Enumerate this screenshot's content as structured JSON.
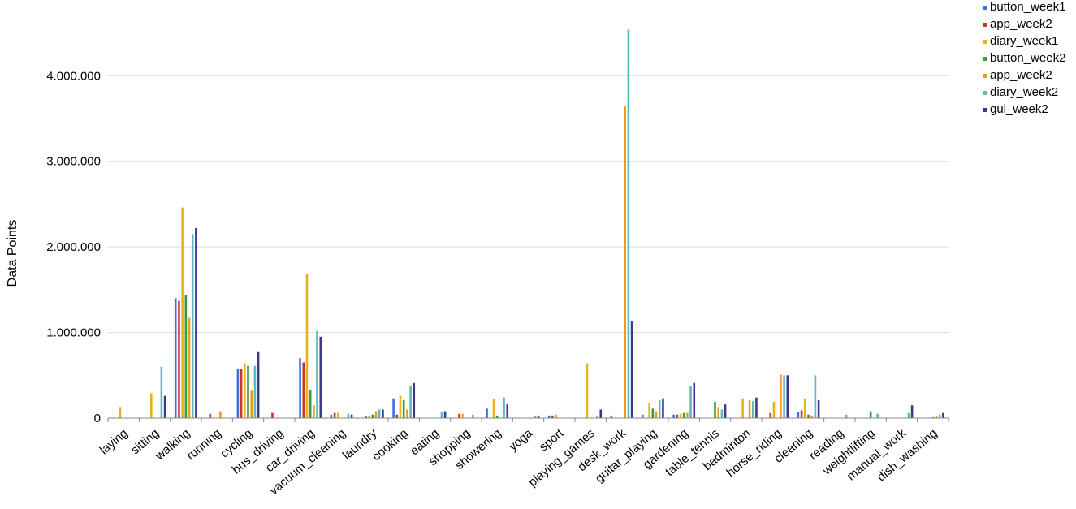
{
  "chart_data": {
    "type": "bar",
    "title": "",
    "xlabel": "",
    "ylabel": "Data Points",
    "ylim": [
      0,
      4600000
    ],
    "yticks": [
      {
        "value": 0,
        "label": "0"
      },
      {
        "value": 1000000,
        "label": "1.000.000"
      },
      {
        "value": 2000000,
        "label": "2.000.000"
      },
      {
        "value": 3000000,
        "label": "3.000.000"
      },
      {
        "value": 4000000,
        "label": "4.000.000"
      }
    ],
    "grid": true,
    "legend_position": "top-right",
    "categories": [
      "laying",
      "sitting",
      "walking",
      "running",
      "cycling",
      "bus_driving",
      "car_driving",
      "vacuum_cleaning",
      "laundry",
      "cooking",
      "eating",
      "shopping",
      "showering",
      "yoga",
      "sport",
      "playing_games",
      "desk_work",
      "guitar_playing",
      "gardening",
      "table_tennis",
      "badminton",
      "horse_riding",
      "cleaning",
      "reading",
      "weightlifting",
      "manual_work",
      "dish_washing"
    ],
    "series": [
      {
        "name": "button_week1",
        "color": "#3d6fdb",
        "values": [
          0,
          0,
          1400000,
          0,
          570000,
          0,
          700000,
          40000,
          0,
          230000,
          0,
          0,
          110000,
          0,
          30000,
          0,
          30000,
          40000,
          40000,
          0,
          0,
          0,
          70000,
          0,
          0,
          0,
          0
        ]
      },
      {
        "name": "app_week2",
        "color": "#c0392b",
        "values": [
          0,
          0,
          1370000,
          50000,
          570000,
          60000,
          650000,
          60000,
          20000,
          40000,
          0,
          50000,
          0,
          0,
          30000,
          0,
          0,
          0,
          40000,
          0,
          0,
          60000,
          90000,
          0,
          0,
          0,
          0
        ]
      },
      {
        "name": "diary_week1",
        "color": "#e8b21c",
        "values": [
          130000,
          290000,
          2460000,
          0,
          640000,
          0,
          1680000,
          60000,
          20000,
          260000,
          0,
          50000,
          220000,
          0,
          40000,
          640000,
          0,
          170000,
          50000,
          0,
          230000,
          190000,
          230000,
          0,
          0,
          0,
          0
        ]
      },
      {
        "name": "button_week2",
        "color": "#3a9a3a",
        "values": [
          0,
          0,
          1440000,
          0,
          610000,
          0,
          330000,
          0,
          40000,
          210000,
          0,
          0,
          30000,
          0,
          0,
          0,
          0,
          110000,
          60000,
          190000,
          0,
          0,
          40000,
          0,
          80000,
          0,
          10000
        ]
      },
      {
        "name": "app_week2",
        "color": "#ee9a1a",
        "values": [
          0,
          0,
          1170000,
          80000,
          320000,
          0,
          150000,
          0,
          80000,
          100000,
          0,
          0,
          0,
          0,
          0,
          0,
          3640000,
          80000,
          60000,
          130000,
          210000,
          510000,
          30000,
          0,
          0,
          0,
          20000
        ]
      },
      {
        "name": "diary_week2",
        "color": "#5bbcc0",
        "values": [
          0,
          600000,
          2150000,
          0,
          610000,
          0,
          1020000,
          50000,
          100000,
          380000,
          70000,
          40000,
          240000,
          20000,
          0,
          30000,
          4540000,
          210000,
          370000,
          100000,
          200000,
          500000,
          500000,
          40000,
          50000,
          60000,
          40000
        ]
      },
      {
        "name": "gui_week2",
        "color": "#3a3a8c",
        "values": [
          0,
          260000,
          2220000,
          0,
          780000,
          0,
          950000,
          40000,
          100000,
          410000,
          80000,
          0,
          160000,
          30000,
          0,
          100000,
          1130000,
          230000,
          410000,
          160000,
          240000,
          500000,
          210000,
          0,
          0,
          150000,
          60000
        ]
      }
    ]
  }
}
